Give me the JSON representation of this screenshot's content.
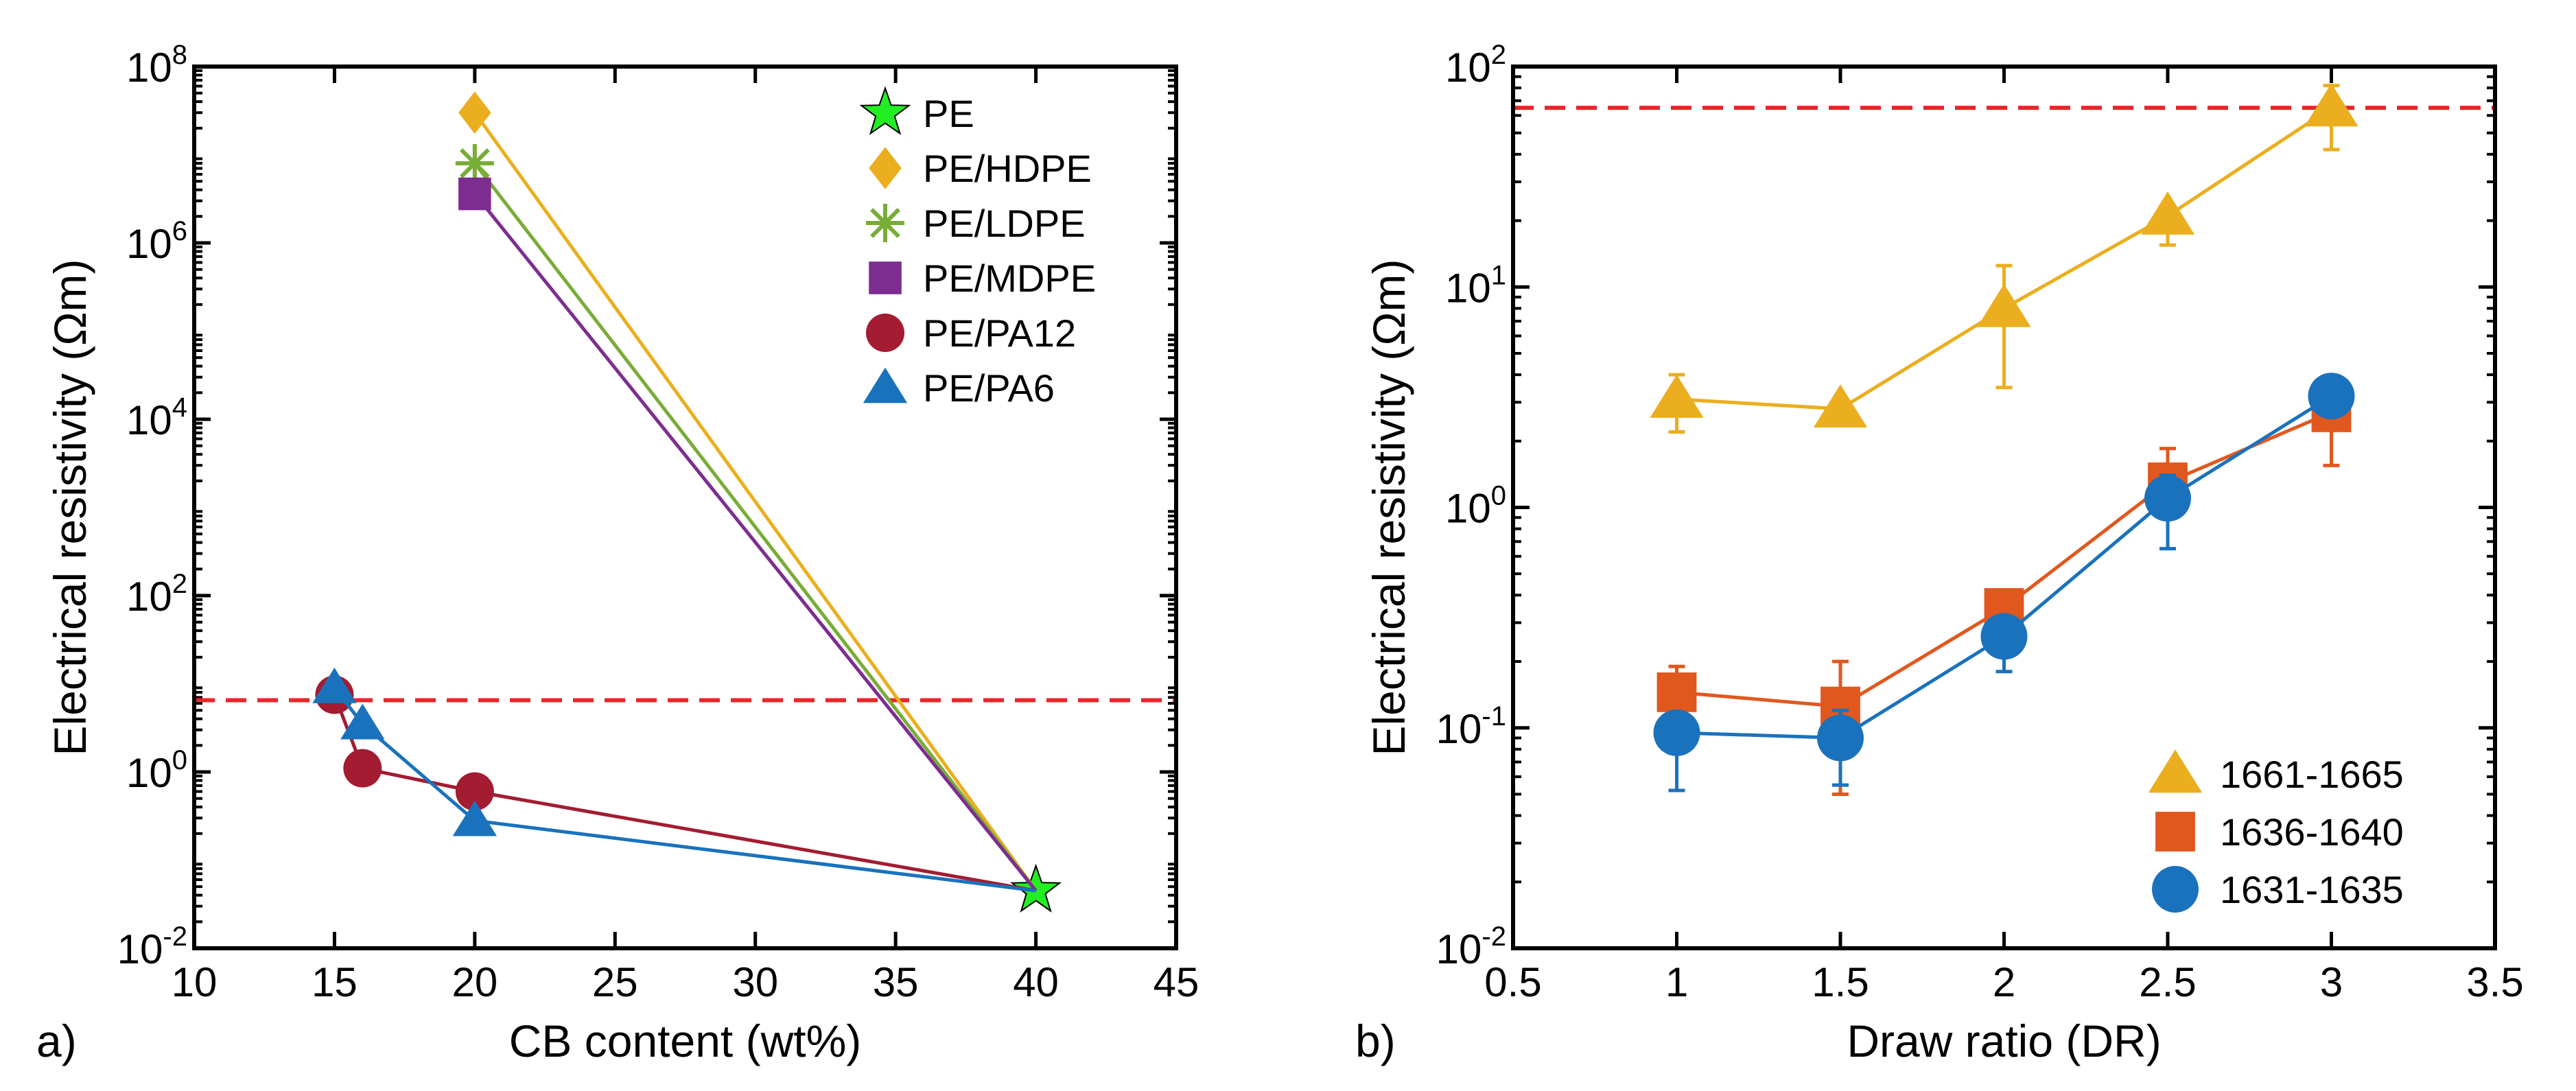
{
  "chart_data": [
    {
      "panel": "a)",
      "type": "line",
      "xlabel": "CB content (wt%)",
      "ylabel": "Electrical resistivity (Ωm)",
      "xlim": [
        10,
        45
      ],
      "ylim_log10": [
        -2,
        8
      ],
      "yscale": "log",
      "xticks": [
        10,
        15,
        20,
        25,
        30,
        35,
        40,
        45
      ],
      "yticks_exponent": [
        -2,
        0,
        2,
        4,
        6,
        8
      ],
      "ytick_base": "10",
      "reference_line": {
        "y": 6.5,
        "style": "dashed",
        "color": "#e8262a"
      },
      "legend_position": "top-right",
      "series": [
        {
          "name": "PE",
          "marker": "star",
          "color": "#22ee22",
          "points": [
            [
              40,
              0.045
            ]
          ]
        },
        {
          "name": "PE/HDPE",
          "marker": "diamond",
          "color": "#ebae1e",
          "points": [
            [
              20,
              30000000.0
            ],
            [
              40,
              0.045
            ]
          ]
        },
        {
          "name": "PE/LDPE",
          "marker": "asterisk",
          "color": "#78ad36",
          "points": [
            [
              20,
              8000000.0
            ],
            [
              40,
              0.045
            ]
          ]
        },
        {
          "name": "PE/MDPE",
          "marker": "square",
          "color": "#7d2d90",
          "points": [
            [
              20,
              3600000.0
            ],
            [
              40,
              0.045
            ]
          ]
        },
        {
          "name": "PE/PA12",
          "marker": "circle",
          "color": "#a31c32",
          "points": [
            [
              15,
              7.5
            ],
            [
              16,
              1.1
            ],
            [
              20,
              0.6
            ],
            [
              40,
              0.045
            ]
          ]
        },
        {
          "name": "PE/PA6",
          "marker": "triangle",
          "color": "#1a72bd",
          "points": [
            [
              15,
              9.0
            ],
            [
              16,
              3.5
            ],
            [
              20,
              0.28
            ],
            [
              40,
              0.045
            ]
          ]
        }
      ]
    },
    {
      "panel": "b)",
      "type": "line",
      "xlabel": "Draw ratio (DR)",
      "ylabel": "Electrical resistivity (Ωm)",
      "xlim": [
        0.5,
        3.5
      ],
      "ylim_log10": [
        -2,
        2
      ],
      "yscale": "log",
      "xticks": [
        "0.5",
        "1",
        "1.5",
        "2",
        "2.5",
        "3",
        "3.5"
      ],
      "yticks_exponent": [
        -2,
        -1,
        0,
        1,
        2
      ],
      "ytick_labels": [
        "10",
        "10",
        "10",
        "10",
        "10"
      ],
      "ytick_exponent_labels": [
        "-2",
        "-1",
        "0",
        "1",
        "2"
      ],
      "reference_line": {
        "y": 65,
        "style": "dashed",
        "color": "#e8262a"
      },
      "legend_position": "bottom-right",
      "series": [
        {
          "name": "1661-1665",
          "marker": "triangle",
          "color": "#ebae1e",
          "x": [
            1,
            1.5,
            2,
            2.5,
            3
          ],
          "y": [
            3.1,
            2.8,
            8.0,
            21,
            65
          ],
          "err_low": [
            2.2,
            null,
            3.5,
            15.5,
            42
          ],
          "err_high": [
            4.0,
            null,
            12.5,
            22,
            82
          ]
        },
        {
          "name": "1636-1640",
          "marker": "square",
          "color": "#e0581e",
          "x": [
            1,
            1.5,
            2,
            2.5,
            3
          ],
          "y": [
            0.145,
            0.125,
            0.35,
            1.3,
            2.7
          ],
          "err_low": [
            0.1,
            0.05,
            0.25,
            0.9,
            1.55
          ],
          "err_high": [
            0.19,
            0.2,
            0.42,
            1.85,
            3.0
          ]
        },
        {
          "name": "1631-1635",
          "marker": "circle",
          "color": "#1a72bd",
          "x": [
            1,
            1.5,
            2,
            2.5,
            3
          ],
          "y": [
            0.095,
            0.09,
            0.26,
            1.1,
            3.2
          ],
          "err_low": [
            0.052,
            0.055,
            0.18,
            0.65,
            2.7
          ],
          "err_high": [
            0.1,
            0.12,
            0.3,
            1.4,
            3.6
          ]
        }
      ]
    }
  ]
}
